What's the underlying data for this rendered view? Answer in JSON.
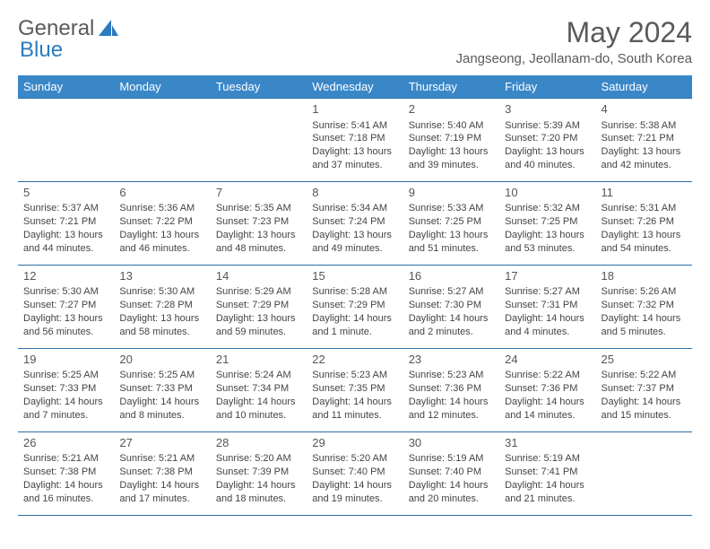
{
  "logo": {
    "text1": "General",
    "text2": "Blue"
  },
  "title": "May 2024",
  "location": "Jangseong, Jeollanam-do, South Korea",
  "colors": {
    "header_bg": "#3a87c8",
    "header_text": "#ffffff",
    "border": "#2b6fa8",
    "text": "#444444",
    "title_text": "#5a5a5a",
    "logo_blue": "#2b7bbf"
  },
  "day_headers": [
    "Sunday",
    "Monday",
    "Tuesday",
    "Wednesday",
    "Thursday",
    "Friday",
    "Saturday"
  ],
  "weeks": [
    [
      null,
      null,
      null,
      {
        "n": "1",
        "sr": "5:41 AM",
        "ss": "7:18 PM",
        "dl": "13 hours and 37 minutes."
      },
      {
        "n": "2",
        "sr": "5:40 AM",
        "ss": "7:19 PM",
        "dl": "13 hours and 39 minutes."
      },
      {
        "n": "3",
        "sr": "5:39 AM",
        "ss": "7:20 PM",
        "dl": "13 hours and 40 minutes."
      },
      {
        "n": "4",
        "sr": "5:38 AM",
        "ss": "7:21 PM",
        "dl": "13 hours and 42 minutes."
      }
    ],
    [
      {
        "n": "5",
        "sr": "5:37 AM",
        "ss": "7:21 PM",
        "dl": "13 hours and 44 minutes."
      },
      {
        "n": "6",
        "sr": "5:36 AM",
        "ss": "7:22 PM",
        "dl": "13 hours and 46 minutes."
      },
      {
        "n": "7",
        "sr": "5:35 AM",
        "ss": "7:23 PM",
        "dl": "13 hours and 48 minutes."
      },
      {
        "n": "8",
        "sr": "5:34 AM",
        "ss": "7:24 PM",
        "dl": "13 hours and 49 minutes."
      },
      {
        "n": "9",
        "sr": "5:33 AM",
        "ss": "7:25 PM",
        "dl": "13 hours and 51 minutes."
      },
      {
        "n": "10",
        "sr": "5:32 AM",
        "ss": "7:25 PM",
        "dl": "13 hours and 53 minutes."
      },
      {
        "n": "11",
        "sr": "5:31 AM",
        "ss": "7:26 PM",
        "dl": "13 hours and 54 minutes."
      }
    ],
    [
      {
        "n": "12",
        "sr": "5:30 AM",
        "ss": "7:27 PM",
        "dl": "13 hours and 56 minutes."
      },
      {
        "n": "13",
        "sr": "5:30 AM",
        "ss": "7:28 PM",
        "dl": "13 hours and 58 minutes."
      },
      {
        "n": "14",
        "sr": "5:29 AM",
        "ss": "7:29 PM",
        "dl": "13 hours and 59 minutes."
      },
      {
        "n": "15",
        "sr": "5:28 AM",
        "ss": "7:29 PM",
        "dl": "14 hours and 1 minute."
      },
      {
        "n": "16",
        "sr": "5:27 AM",
        "ss": "7:30 PM",
        "dl": "14 hours and 2 minutes."
      },
      {
        "n": "17",
        "sr": "5:27 AM",
        "ss": "7:31 PM",
        "dl": "14 hours and 4 minutes."
      },
      {
        "n": "18",
        "sr": "5:26 AM",
        "ss": "7:32 PM",
        "dl": "14 hours and 5 minutes."
      }
    ],
    [
      {
        "n": "19",
        "sr": "5:25 AM",
        "ss": "7:33 PM",
        "dl": "14 hours and 7 minutes."
      },
      {
        "n": "20",
        "sr": "5:25 AM",
        "ss": "7:33 PM",
        "dl": "14 hours and 8 minutes."
      },
      {
        "n": "21",
        "sr": "5:24 AM",
        "ss": "7:34 PM",
        "dl": "14 hours and 10 minutes."
      },
      {
        "n": "22",
        "sr": "5:23 AM",
        "ss": "7:35 PM",
        "dl": "14 hours and 11 minutes."
      },
      {
        "n": "23",
        "sr": "5:23 AM",
        "ss": "7:36 PM",
        "dl": "14 hours and 12 minutes."
      },
      {
        "n": "24",
        "sr": "5:22 AM",
        "ss": "7:36 PM",
        "dl": "14 hours and 14 minutes."
      },
      {
        "n": "25",
        "sr": "5:22 AM",
        "ss": "7:37 PM",
        "dl": "14 hours and 15 minutes."
      }
    ],
    [
      {
        "n": "26",
        "sr": "5:21 AM",
        "ss": "7:38 PM",
        "dl": "14 hours and 16 minutes."
      },
      {
        "n": "27",
        "sr": "5:21 AM",
        "ss": "7:38 PM",
        "dl": "14 hours and 17 minutes."
      },
      {
        "n": "28",
        "sr": "5:20 AM",
        "ss": "7:39 PM",
        "dl": "14 hours and 18 minutes."
      },
      {
        "n": "29",
        "sr": "5:20 AM",
        "ss": "7:40 PM",
        "dl": "14 hours and 19 minutes."
      },
      {
        "n": "30",
        "sr": "5:19 AM",
        "ss": "7:40 PM",
        "dl": "14 hours and 20 minutes."
      },
      {
        "n": "31",
        "sr": "5:19 AM",
        "ss": "7:41 PM",
        "dl": "14 hours and 21 minutes."
      },
      null
    ]
  ],
  "labels": {
    "sunrise": "Sunrise: ",
    "sunset": "Sunset: ",
    "daylight": "Daylight: "
  }
}
